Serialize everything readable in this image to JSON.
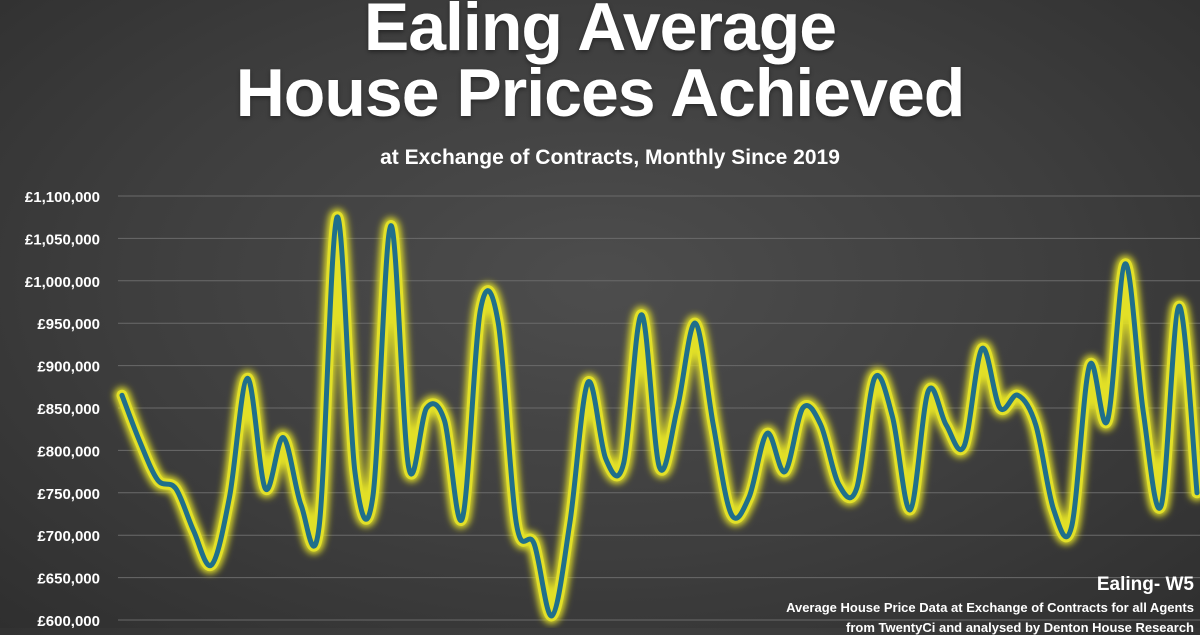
{
  "header": {
    "title_line1": "Ealing Average",
    "title_line2": "House Prices Achieved",
    "subtitle": "at Exchange of Contracts, Monthly Since 2019"
  },
  "notes": {
    "area": "Ealing- W5",
    "source_line1": "Average House Price Data at Exchange of Contracts for all Agents",
    "source_line2": "from TwentyCi and analysed by Denton House Research"
  },
  "colors": {
    "line": "#1f6f8b",
    "glow": "#e2e028",
    "grid": "#6a6a6a"
  },
  "chart_data": {
    "type": "line",
    "title": "Ealing Average House Prices Achieved",
    "subtitle": "at Exchange of Contracts, Monthly Since 2019",
    "xlabel": "",
    "ylabel": "",
    "ylim": [
      600000,
      1100000
    ],
    "y_ticks": [
      "£600,000",
      "£650,000",
      "£700,000",
      "£750,000",
      "£800,000",
      "£850,000",
      "£900,000",
      "£950,000",
      "£1,000,000",
      "£1,050,000",
      "£1,100,000"
    ],
    "y_tick_values": [
      600000,
      650000,
      700000,
      750000,
      800000,
      850000,
      900000,
      950000,
      1000000,
      1050000,
      1100000
    ],
    "grid": true,
    "legend": "none",
    "series": [
      {
        "values": [
          865000,
          810000,
          765000,
          755000,
          705000,
          665000,
          745000,
          885000,
          755000,
          815000,
          735000,
          710000,
          1075000,
          775000,
          745000,
          1065000,
          780000,
          850000,
          835000,
          720000,
          965000,
          950000,
          715000,
          690000,
          605000,
          715000,
          880000,
          790000,
          785000,
          960000,
          780000,
          850000,
          950000,
          830000,
          725000,
          745000,
          820000,
          775000,
          850000,
          830000,
          760000,
          755000,
          885000,
          840000,
          730000,
          870000,
          830000,
          805000,
          920000,
          850000,
          865000,
          830000,
          730000,
          710000,
          900000,
          835000,
          1020000,
          845000,
          735000,
          970000,
          750000
        ]
      }
    ]
  }
}
